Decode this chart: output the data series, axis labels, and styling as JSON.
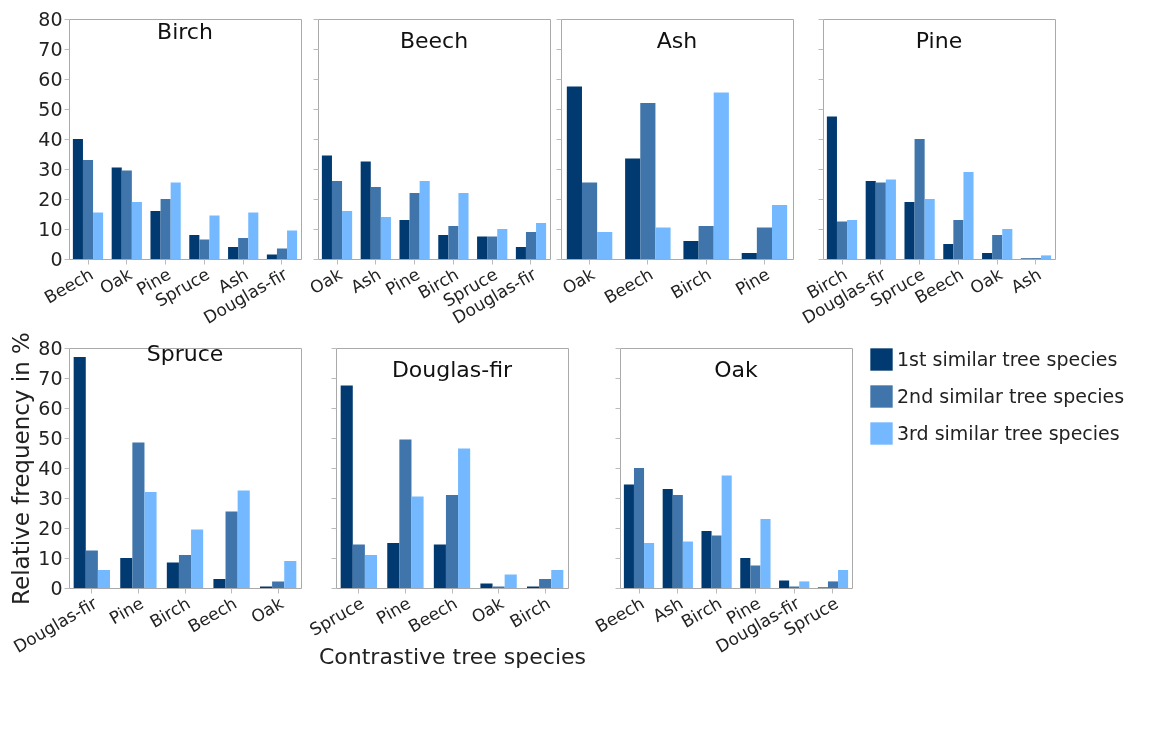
{
  "chart_data": [
    {
      "type": "bar",
      "title": "Birch",
      "categories": [
        "Beech",
        "Oak",
        "Pine",
        "Spruce",
        "Ash",
        "Douglas-fir"
      ],
      "ylim": [
        0,
        80
      ],
      "yticks": [
        0,
        10,
        20,
        30,
        40,
        50,
        60,
        70,
        80
      ],
      "series": [
        {
          "color": "#003a70",
          "values": [
            40,
            30.5,
            16,
            8,
            4,
            1.5
          ]
        },
        {
          "color": "#3f75aa",
          "values": [
            33,
            29.5,
            20,
            6.5,
            7,
            3.5
          ]
        },
        {
          "color": "#74b9ff",
          "values": [
            15.5,
            19,
            25.5,
            14.5,
            15.5,
            9.5
          ]
        }
      ]
    },
    {
      "type": "bar",
      "title": "Beech",
      "categories": [
        "Oak",
        "Ash",
        "Pine",
        "Birch",
        "Spruce",
        "Douglas-fir"
      ],
      "ylim": [
        0,
        80
      ],
      "yticks": [
        0,
        10,
        20,
        30,
        40,
        50,
        60,
        70,
        80
      ],
      "tick_labels": "x",
      "series": [
        {
          "color": "#003a70",
          "values": [
            34.5,
            32.5,
            13,
            8,
            7.5,
            4
          ]
        },
        {
          "color": "#3f75aa",
          "values": [
            26,
            24,
            22,
            11,
            7.5,
            9
          ]
        },
        {
          "color": "#74b9ff",
          "values": [
            16,
            14,
            26,
            22,
            10,
            12
          ]
        }
      ]
    },
    {
      "type": "bar",
      "title": "Ash",
      "categories": [
        "Oak",
        "Beech",
        "Birch",
        "Pine"
      ],
      "ylim": [
        0,
        80
      ],
      "yticks": [
        0,
        10,
        20,
        30,
        40,
        50,
        60,
        70,
        80
      ],
      "tick_labels": "x",
      "series": [
        {
          "color": "#003a70",
          "values": [
            57.5,
            33.5,
            6,
            2
          ]
        },
        {
          "color": "#3f75aa",
          "values": [
            25.5,
            52,
            11,
            10.5
          ]
        },
        {
          "color": "#74b9ff",
          "values": [
            9,
            10.5,
            55.5,
            18
          ]
        }
      ]
    },
    {
      "type": "bar",
      "title": "Pine",
      "categories": [
        "Birch",
        "Douglas-fir",
        "Spruce",
        "Beech",
        "Oak",
        "Ash"
      ],
      "ylim": [
        0,
        80
      ],
      "yticks": [
        0,
        10,
        20,
        30,
        40,
        50,
        60,
        70,
        80
      ],
      "tick_labels": "x",
      "series": [
        {
          "color": "#003a70",
          "values": [
            47.5,
            26,
            19,
            5,
            2,
            0.2
          ]
        },
        {
          "color": "#3f75aa",
          "values": [
            12.5,
            25.5,
            40,
            13,
            8,
            0.3
          ]
        },
        {
          "color": "#74b9ff",
          "values": [
            13,
            26.5,
            20,
            29,
            10,
            1.2
          ]
        }
      ]
    },
    {
      "type": "bar",
      "title": "Spruce",
      "ylabel": "Relative frequency in %",
      "categories": [
        "Douglas-fir",
        "Pine",
        "Birch",
        "Beech",
        "Oak"
      ],
      "ylim": [
        0,
        80
      ],
      "yticks": [
        0,
        10,
        20,
        30,
        40,
        50,
        60,
        70,
        80
      ],
      "series": [
        {
          "color": "#003a70",
          "values": [
            77,
            10,
            8.5,
            3,
            0.5
          ]
        },
        {
          "color": "#3f75aa",
          "values": [
            12.5,
            48.5,
            11,
            25.5,
            2.2
          ]
        },
        {
          "color": "#74b9ff",
          "values": [
            6,
            32,
            19.5,
            32.5,
            9
          ]
        }
      ]
    },
    {
      "type": "bar",
      "title": "Douglas-fir",
      "xlabel": "Contrastive tree species",
      "categories": [
        "Spruce",
        "Pine",
        "Beech",
        "Oak",
        "Birch"
      ],
      "ylim": [
        0,
        80
      ],
      "yticks": [
        0,
        10,
        20,
        30,
        40,
        50,
        60,
        70,
        80
      ],
      "tick_labels": "x",
      "series": [
        {
          "color": "#003a70",
          "values": [
            67.5,
            15,
            14.5,
            1.5,
            0.5
          ]
        },
        {
          "color": "#3f75aa",
          "values": [
            14.5,
            49.5,
            31,
            0.5,
            3
          ]
        },
        {
          "color": "#74b9ff",
          "values": [
            11,
            30.5,
            46.5,
            4.5,
            6
          ]
        }
      ]
    },
    {
      "type": "bar",
      "title": "Oak",
      "legend": "right",
      "categories": [
        "Beech",
        "Ash",
        "Birch",
        "Pine",
        "Douglas-fir",
        "Spruce"
      ],
      "ylim": [
        0,
        80
      ],
      "yticks": [
        0,
        10,
        20,
        30,
        40,
        50,
        60,
        70,
        80
      ],
      "tick_labels": "x",
      "series": [
        {
          "name": "1st similar tree species",
          "color": "#003a70",
          "values": [
            34.5,
            33,
            19,
            10,
            2.5,
            0.2
          ]
        },
        {
          "name": "2nd similar tree species",
          "color": "#3f75aa",
          "values": [
            40,
            31,
            17.5,
            7.5,
            0.5,
            2.2
          ]
        },
        {
          "name": "3rd similar tree species",
          "color": "#74b9ff",
          "values": [
            15,
            15.5,
            37.5,
            23,
            2.2,
            6
          ]
        }
      ]
    }
  ]
}
